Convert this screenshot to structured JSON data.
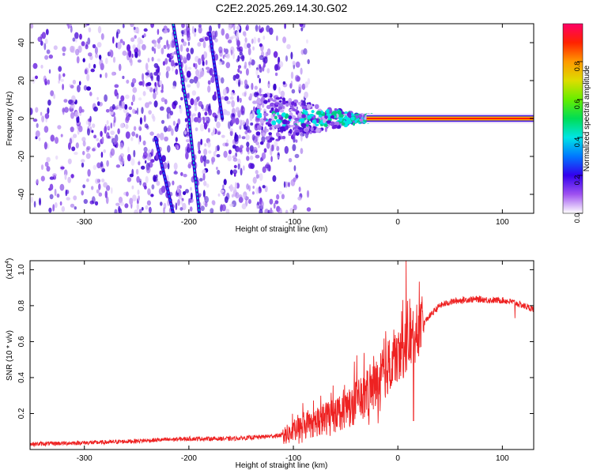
{
  "figure": {
    "title": "C2E2.2025.269.14.30.G02"
  },
  "chart_data": [
    {
      "type": "heatmap",
      "title": "C2E2.2025.269.14.30.G02",
      "xlabel": "Height of straight line (km)",
      "ylabel": "Frequency (Hz)",
      "xlim": [
        -352,
        130
      ],
      "ylim": [
        -50,
        50
      ],
      "xticks": [
        -300,
        -200,
        -100,
        0,
        100
      ],
      "yticks": [
        -40,
        -20,
        0,
        20,
        40
      ],
      "xtick_labels": [
        "-300",
        "-200",
        "-100",
        "0",
        "100"
      ],
      "ytick_labels": [
        "-40",
        "-20",
        "0",
        "20",
        "40"
      ],
      "colorbar": {
        "label": "Normalized spectral amplitude",
        "range": [
          0,
          1
        ],
        "ticks": [
          0.0,
          0.2,
          0.4,
          0.6,
          0.8
        ],
        "tick_labels": [
          "0.0",
          "0.2",
          "0.4",
          "0.6",
          "0.8"
        ],
        "colormap": [
          "#ffffff",
          "#9f52f0",
          "#3300ee",
          "#0077ff",
          "#00e5e5",
          "#00dd55",
          "#66ee00",
          "#dddd00",
          "#ff9900",
          "#ff2200",
          "#ff0066"
        ]
      },
      "features": {
        "noise_region_x": [
          -352,
          -100
        ],
        "diagonal_tracks": [
          {
            "x_start": -215,
            "freq_start": 50,
            "x_end": -200,
            "freq_end": 0
          },
          {
            "x_start": -200,
            "freq_start": 0,
            "x_end": -190,
            "freq_end": -50
          },
          {
            "x_start": -180,
            "freq_start": 45,
            "x_end": -168,
            "freq_end": 0
          },
          {
            "x_start": -232,
            "freq_start": -10,
            "x_end": -215,
            "freq_end": -50
          }
        ],
        "carrier_line_start_x": -30,
        "carrier_frequency": 0
      }
    },
    {
      "type": "line",
      "xlabel": "Height of straight line (km)",
      "ylabel": "SNR (10 * v/v)",
      "scale_note": "(x10",
      "scale_exponent": "4",
      "xlim": [
        -352,
        130
      ],
      "ylim": [
        0,
        1.05
      ],
      "xticks": [
        -300,
        -200,
        -100,
        0,
        100
      ],
      "yticks": [
        0.2,
        0.4,
        0.6,
        0.8,
        1.0
      ],
      "xtick_labels": [
        "-300",
        "-200",
        "-100",
        "0",
        "100"
      ],
      "ytick_labels": [
        "0.2",
        "0.4",
        "0.6",
        "0.8",
        "1.0"
      ],
      "series": [
        {
          "name": "SNR",
          "color": "#ee2222",
          "x": [
            -352,
            -320,
            -280,
            -240,
            -200,
            -160,
            -130,
            -110,
            -100,
            -90,
            -80,
            -70,
            -60,
            -50,
            -40,
            -30,
            -20,
            -12,
            -5,
            5,
            10,
            15,
            20,
            30,
            40,
            50,
            60,
            70,
            80,
            90,
            100,
            110,
            120,
            130
          ],
          "y": [
            0.03,
            0.035,
            0.04,
            0.05,
            0.06,
            0.06,
            0.07,
            0.08,
            0.09,
            0.13,
            0.15,
            0.17,
            0.2,
            0.23,
            0.27,
            0.3,
            0.36,
            0.44,
            0.5,
            0.55,
            0.58,
            0.62,
            0.67,
            0.74,
            0.8,
            0.82,
            0.83,
            0.835,
            0.835,
            0.83,
            0.83,
            0.82,
            0.8,
            0.78
          ],
          "spikes": [
            {
              "x": 8,
              "y": 1.05
            },
            {
              "x": 15,
              "y": 0.16
            },
            {
              "x": 112,
              "y": 0.73
            }
          ]
        }
      ]
    }
  ]
}
